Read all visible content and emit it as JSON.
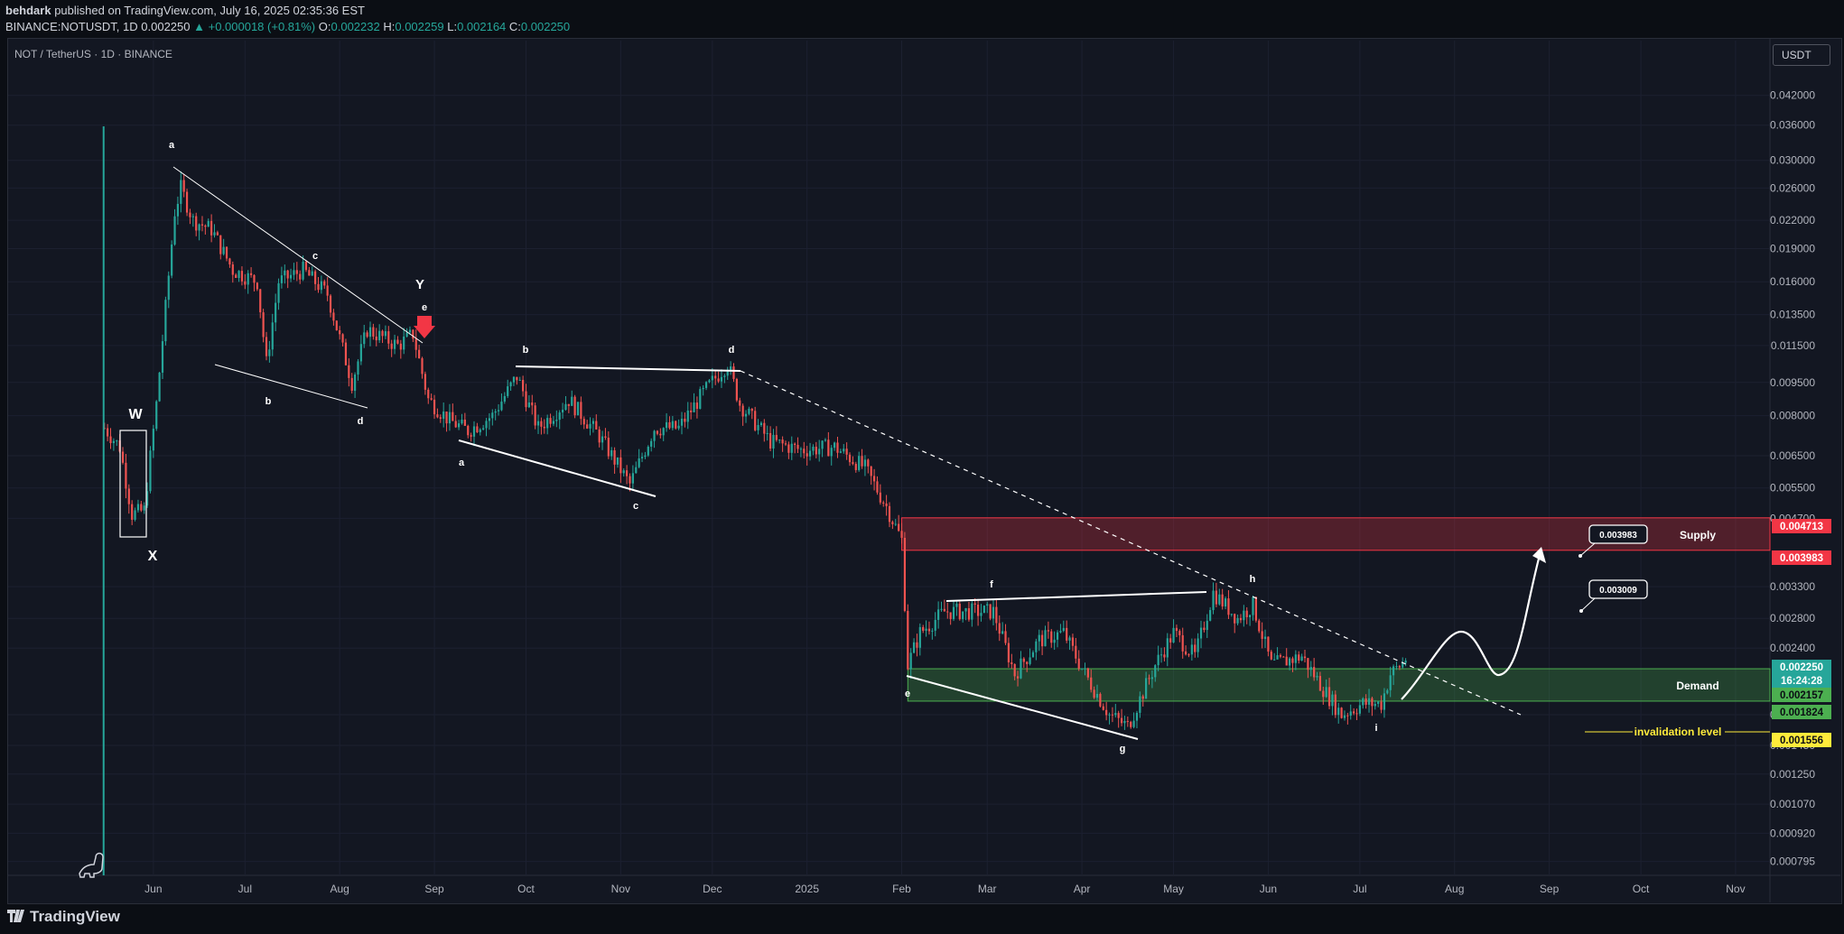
{
  "header": {
    "author": "behdark",
    "published": "published on TradingView.com, July 16, 2025 02:35:36 EST",
    "ticker": "BINANCE:NOTUSDT, 1D",
    "last": "0.002250",
    "change": "▲ +0.000018 (+0.81%)",
    "o_label": "O:",
    "o": "0.002232",
    "h_label": "H:",
    "h": "0.002259",
    "l_label": "L:",
    "l": "0.002164",
    "c_label": "C:",
    "c": "0.002250"
  },
  "chart": {
    "symbol_title": "NOT / TetherUS · 1D · BINANCE",
    "currency": "USDT",
    "logo": "TradingView",
    "logo_icon": "tradingview-logo-icon",
    "watermark_icon": "dinosaur-icon"
  },
  "chart_data": {
    "type": "candlestick",
    "scale": "log",
    "x_ticks": [
      "Jun",
      "Jul",
      "Aug",
      "Sep",
      "Oct",
      "Nov",
      "Dec",
      "2025",
      "Feb",
      "Mar",
      "Apr",
      "May",
      "Jun",
      "Jul",
      "Aug",
      "Sep",
      "Oct",
      "Nov"
    ],
    "y_ticks": [
      "0.042000",
      "0.036000",
      "0.030000",
      "0.026000",
      "0.022000",
      "0.019000",
      "0.016000",
      "0.013500",
      "0.011500",
      "0.009500",
      "0.008000",
      "0.006500",
      "0.005500",
      "0.004700",
      "0.003300",
      "0.002800",
      "0.002400",
      "0.001700",
      "0.001450",
      "0.001250",
      "0.001070",
      "0.000920",
      "0.000795"
    ],
    "ylim": [
      0.00074,
      0.052
    ],
    "price_labels": [
      {
        "value": "0.004713",
        "color": "#f23645"
      },
      {
        "value": "0.003983",
        "color": "#f23645"
      },
      {
        "value": "0.002250",
        "color": "#26a69a"
      },
      {
        "value": "16:24:28",
        "color": "#26a69a"
      },
      {
        "value": "0.002157",
        "color": "#4caf50"
      },
      {
        "value": "0.001824",
        "color": "#4caf50"
      },
      {
        "value": "0.001556",
        "color": "#ffeb3b"
      }
    ],
    "zones": {
      "supply": {
        "label": "Supply",
        "top": 0.004713,
        "bottom": 0.003983,
        "color": "#f23645"
      },
      "demand": {
        "label": "Demand",
        "top": 0.002157,
        "bottom": 0.001824,
        "color": "#4caf50"
      },
      "invalidation": {
        "label": "invalidation level",
        "value": 0.001556,
        "color": "#ffeb3b"
      }
    },
    "targets": [
      "0.003983",
      "0.003009"
    ],
    "wave_labels": [
      "W",
      "X",
      "Y",
      "a",
      "b",
      "c",
      "d",
      "e",
      "a",
      "b",
      "c",
      "d",
      "e",
      "f",
      "g",
      "h",
      "i"
    ],
    "colors": {
      "up": "#26a69a",
      "down": "#ef5350",
      "arrow": "#f23645"
    },
    "price_path": [
      [
        "2024-05-16",
        0.0075
      ],
      [
        "2024-05-21",
        0.0068
      ],
      [
        "2024-05-25",
        0.0048
      ],
      [
        "2024-05-29",
        0.0049
      ],
      [
        "2024-06-02",
        0.0085
      ],
      [
        "2024-06-05",
        0.014
      ],
      [
        "2024-06-08",
        0.023
      ],
      [
        "2024-06-10",
        0.026
      ],
      [
        "2024-06-14",
        0.022
      ],
      [
        "2024-06-20",
        0.021
      ],
      [
        "2024-06-27",
        0.017
      ],
      [
        "2024-07-05",
        0.016
      ],
      [
        "2024-07-08",
        0.0105
      ],
      [
        "2024-07-12",
        0.016
      ],
      [
        "2024-07-20",
        0.017
      ],
      [
        "2024-07-28",
        0.015
      ],
      [
        "2024-08-05",
        0.0095
      ],
      [
        "2024-08-10",
        0.0125
      ],
      [
        "2024-08-20",
        0.0115
      ],
      [
        "2024-08-25",
        0.0122
      ],
      [
        "2024-08-30",
        0.0087
      ],
      [
        "2024-09-06",
        0.0078
      ],
      [
        "2024-09-12",
        0.0074
      ],
      [
        "2024-09-20",
        0.008
      ],
      [
        "2024-09-28",
        0.0098
      ],
      [
        "2024-10-05",
        0.0075
      ],
      [
        "2024-10-15",
        0.0087
      ],
      [
        "2024-10-25",
        0.0072
      ],
      [
        "2024-11-04",
        0.0056
      ],
      [
        "2024-11-12",
        0.0075
      ],
      [
        "2024-11-20",
        0.0075
      ],
      [
        "2024-11-28",
        0.009
      ],
      [
        "2024-12-06",
        0.0105
      ],
      [
        "2024-12-10",
        0.0085
      ],
      [
        "2024-12-20",
        0.007
      ],
      [
        "2024-12-30",
        0.0067
      ],
      [
        "2025-01-10",
        0.0068
      ],
      [
        "2025-01-20",
        0.0061
      ],
      [
        "2025-01-27",
        0.005
      ],
      [
        "2025-02-01",
        0.0042
      ],
      [
        "2025-02-03",
        0.0022
      ],
      [
        "2025-02-07",
        0.0026
      ],
      [
        "2025-02-15",
        0.0029
      ],
      [
        "2025-02-25",
        0.0029
      ],
      [
        "2025-03-03",
        0.0029
      ],
      [
        "2025-03-10",
        0.0021
      ],
      [
        "2025-03-18",
        0.0025
      ],
      [
        "2025-03-26",
        0.0026
      ],
      [
        "2025-04-02",
        0.0021
      ],
      [
        "2025-04-10",
        0.0017
      ],
      [
        "2025-04-16",
        0.0016
      ],
      [
        "2025-04-25",
        0.0022
      ],
      [
        "2025-05-01",
        0.0026
      ],
      [
        "2025-05-08",
        0.0023
      ],
      [
        "2025-05-14",
        0.0032
      ],
      [
        "2025-05-22",
        0.0028
      ],
      [
        "2025-05-27",
        0.003
      ],
      [
        "2025-06-02",
        0.0022
      ],
      [
        "2025-06-12",
        0.0023
      ],
      [
        "2025-06-20",
        0.0019
      ],
      [
        "2025-06-25",
        0.0017
      ],
      [
        "2025-07-02",
        0.0018
      ],
      [
        "2025-07-08",
        0.0018
      ],
      [
        "2025-07-11",
        0.0021
      ],
      [
        "2025-07-16",
        0.00225
      ]
    ]
  }
}
